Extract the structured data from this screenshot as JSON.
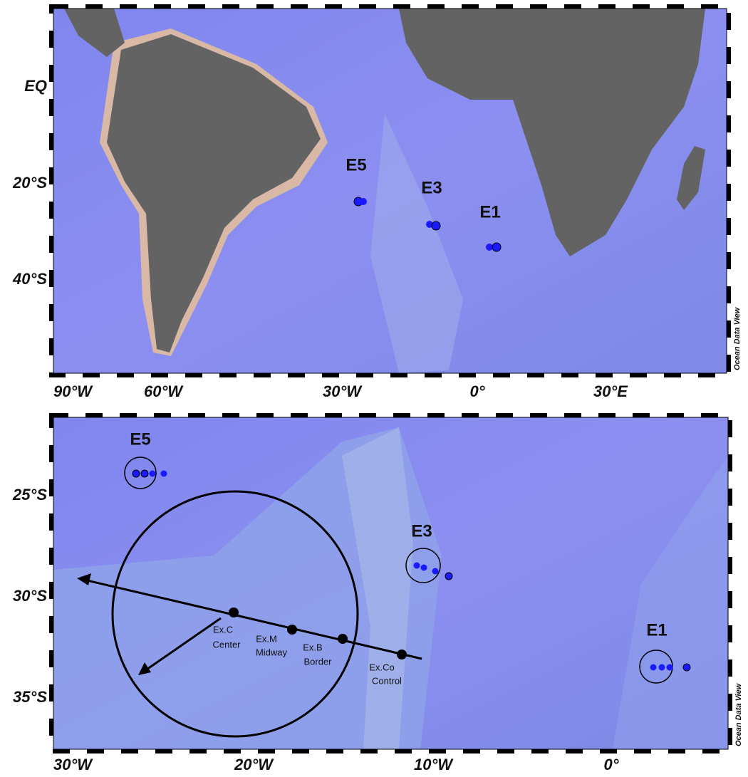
{
  "top_map": {
    "lat_labels": [
      "EQ",
      "20°S",
      "40°S"
    ],
    "lon_labels": [
      "90°W",
      "60°W",
      "30°W",
      "0°",
      "30°E"
    ],
    "stations": [
      "E5",
      "E3",
      "E1"
    ],
    "credit": "Ocean Data View"
  },
  "bottom_map": {
    "lat_labels": [
      "25°S",
      "30°S",
      "35°S"
    ],
    "lon_labels": [
      "30°W",
      "20°W",
      "10°W",
      "0°"
    ],
    "stations": [
      "E5",
      "E3",
      "E1"
    ],
    "points": [
      {
        "code": "Ex.C",
        "name": "Center"
      },
      {
        "code": "Ex.M",
        "name": "Midway"
      },
      {
        "code": "Ex.B",
        "name": "Border"
      },
      {
        "code": "Ex.Co",
        "name": "Control"
      }
    ],
    "credit": "Ocean Data View"
  }
}
